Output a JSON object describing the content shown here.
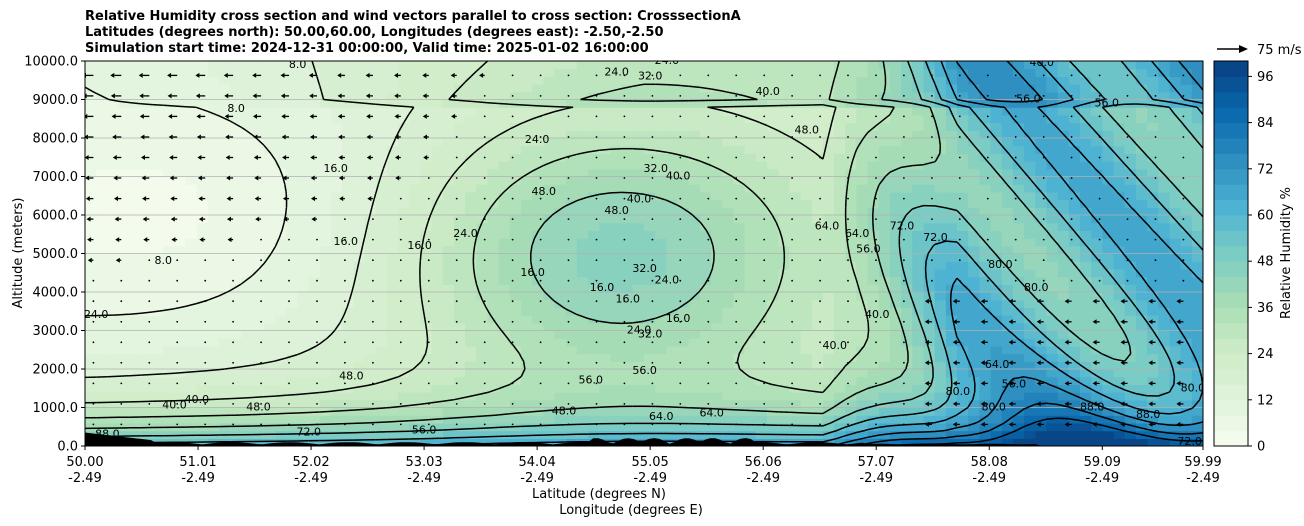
{
  "chart_data": {
    "type": "heatmap",
    "title_lines": [
      "Relative Humidity cross section and wind vectors parallel to cross section: CrosssectionA",
      "Latitudes (degrees north): 50.00,60.00, Longitudes (degrees east): -2.50,-2.50",
      "Simulation start time: 2024-12-31 00:00:00, Valid time: 2025-01-02 16:00:00"
    ],
    "ylabel": "Altitude (meters)",
    "xlabel_lines": [
      "Latitude (degrees N)",
      "Longitude (degrees E)"
    ],
    "ylim": [
      0,
      10000
    ],
    "xlim": [
      50.0,
      59.99
    ],
    "y_ticks": [
      0,
      1000,
      2000,
      3000,
      4000,
      5000,
      6000,
      7000,
      8000,
      9000,
      10000
    ],
    "y_tick_labels": [
      "0.0",
      "1000.0",
      "2000.0",
      "3000.0",
      "4000.0",
      "5000.0",
      "6000.0",
      "7000.0",
      "8000.0",
      "9000.0",
      "10000.0"
    ],
    "x_ticks": [
      50.0,
      51.01,
      52.02,
      53.03,
      54.04,
      55.05,
      56.06,
      57.07,
      58.08,
      59.09,
      59.99
    ],
    "x_tick_lat_labels": [
      "50.00",
      "51.01",
      "52.02",
      "53.03",
      "54.04",
      "55.05",
      "56.06",
      "57.07",
      "58.08",
      "59.09",
      "59.99"
    ],
    "x_tick_lon_labels": [
      "-2.49",
      "-2.49",
      "-2.49",
      "-2.49",
      "-2.49",
      "-2.49",
      "-2.49",
      "-2.49",
      "-2.49",
      "-2.49",
      "-2.49"
    ],
    "grid": "horizontal",
    "colorbar": {
      "label": "Relative Humidity %",
      "range": [
        0,
        100
      ],
      "ticks": [
        0,
        12,
        24,
        36,
        48,
        60,
        72,
        84,
        96
      ],
      "tick_labels": [
        "0",
        "12",
        "24",
        "36",
        "48",
        "60",
        "72",
        "84",
        "96"
      ],
      "colormap": "GnBu",
      "low_color": "#f7fcf0",
      "mid_color": "#a8ddb5",
      "high_color": "#084081"
    },
    "quiver_key": {
      "label": "75 m/s",
      "placement": "top-right"
    },
    "contour_levels": [
      8,
      16,
      24,
      32,
      40,
      48,
      56,
      64,
      72,
      80,
      88
    ],
    "contour_labels": [
      {
        "text": "8.0",
        "lat": 51.9,
        "alt": 9900
      },
      {
        "text": "8.0",
        "lat": 51.35,
        "alt": 8750
      },
      {
        "text": "8.0",
        "lat": 50.7,
        "alt": 4800
      },
      {
        "text": "16.0",
        "lat": 52.24,
        "alt": 7200
      },
      {
        "text": "16.0",
        "lat": 52.33,
        "alt": 5300
      },
      {
        "text": "16.0",
        "lat": 52.99,
        "alt": 5200
      },
      {
        "text": "16.0",
        "lat": 54.0,
        "alt": 4500
      },
      {
        "text": "16.0",
        "lat": 54.62,
        "alt": 4100
      },
      {
        "text": "16.0",
        "lat": 54.85,
        "alt": 3800
      },
      {
        "text": "16.0",
        "lat": 55.3,
        "alt": 3300
      },
      {
        "text": "24.0",
        "lat": 54.04,
        "alt": 7950
      },
      {
        "text": "24.0",
        "lat": 53.4,
        "alt": 5500
      },
      {
        "text": "24.0",
        "lat": 54.75,
        "alt": 9700
      },
      {
        "text": "24.0",
        "lat": 55.2,
        "alt": 10000
      },
      {
        "text": "24.0",
        "lat": 50.1,
        "alt": 3400
      },
      {
        "text": "24.0",
        "lat": 55.2,
        "alt": 4300
      },
      {
        "text": "24.0",
        "lat": 54.95,
        "alt": 3000
      },
      {
        "text": "32.0",
        "lat": 55.05,
        "alt": 9600
      },
      {
        "text": "32.0",
        "lat": 55.1,
        "alt": 7200
      },
      {
        "text": "32.0",
        "lat": 55.0,
        "alt": 4600
      },
      {
        "text": "32.0",
        "lat": 55.05,
        "alt": 2900
      },
      {
        "text": "40.0",
        "lat": 54.95,
        "alt": 6400
      },
      {
        "text": "40.0",
        "lat": 55.3,
        "alt": 7000
      },
      {
        "text": "40.0",
        "lat": 56.1,
        "alt": 9200
      },
      {
        "text": "40.0",
        "lat": 57.08,
        "alt": 3400
      },
      {
        "text": "40.0",
        "lat": 56.7,
        "alt": 2600
      },
      {
        "text": "40.0",
        "lat": 51.0,
        "alt": 1200
      },
      {
        "text": "40.0",
        "lat": 50.8,
        "alt": 1050
      },
      {
        "text": "40.0",
        "lat": 58.55,
        "alt": 9950
      },
      {
        "text": "48.0",
        "lat": 56.45,
        "alt": 8200
      },
      {
        "text": "48.0",
        "lat": 54.1,
        "alt": 6600
      },
      {
        "text": "48.0",
        "lat": 54.75,
        "alt": 6100
      },
      {
        "text": "48.0",
        "lat": 51.55,
        "alt": 1000
      },
      {
        "text": "48.0",
        "lat": 52.38,
        "alt": 1800
      },
      {
        "text": "48.0",
        "lat": 54.28,
        "alt": 900
      },
      {
        "text": "56.0",
        "lat": 54.52,
        "alt": 1700
      },
      {
        "text": "56.0",
        "lat": 55.0,
        "alt": 1950
      },
      {
        "text": "56.0",
        "lat": 57.0,
        "alt": 5100
      },
      {
        "text": "56.0",
        "lat": 58.43,
        "alt": 9000
      },
      {
        "text": "56.0",
        "lat": 59.13,
        "alt": 8900
      },
      {
        "text": "56.0",
        "lat": 53.03,
        "alt": 400
      },
      {
        "text": "56.0",
        "lat": 58.3,
        "alt": 1600
      },
      {
        "text": "64.0",
        "lat": 56.63,
        "alt": 5700
      },
      {
        "text": "64.0",
        "lat": 56.9,
        "alt": 5500
      },
      {
        "text": "64.0",
        "lat": 58.15,
        "alt": 2100
      },
      {
        "text": "64.0",
        "lat": 55.15,
        "alt": 750
      },
      {
        "text": "64.0",
        "lat": 55.6,
        "alt": 850
      },
      {
        "text": "72.0",
        "lat": 57.3,
        "alt": 5700
      },
      {
        "text": "72.0",
        "lat": 57.6,
        "alt": 5400
      },
      {
        "text": "72.0",
        "lat": 52.0,
        "alt": 350
      },
      {
        "text": "72.0",
        "lat": 59.87,
        "alt": 100
      },
      {
        "text": "80.0",
        "lat": 58.18,
        "alt": 4700
      },
      {
        "text": "80.0",
        "lat": 58.5,
        "alt": 4100
      },
      {
        "text": "80.0",
        "lat": 57.8,
        "alt": 1400
      },
      {
        "text": "80.0",
        "lat": 59.9,
        "alt": 1500
      },
      {
        "text": "80.0",
        "lat": 58.12,
        "alt": 1000
      },
      {
        "text": "88.0",
        "lat": 59.0,
        "alt": 1000
      },
      {
        "text": "88.0",
        "lat": 59.5,
        "alt": 800
      },
      {
        "text": "88.0",
        "lat": 50.2,
        "alt": 300
      }
    ],
    "note_levels": {
      "background_regions": [
        {
          "desc": "upper-left dry",
          "rh": 8
        },
        {
          "desc": "mid-level moist tongue",
          "rh": 40
        },
        {
          "desc": "right deep moist",
          "rh": 80
        },
        {
          "desc": "boundary layer",
          "rh": 75
        }
      ]
    }
  }
}
